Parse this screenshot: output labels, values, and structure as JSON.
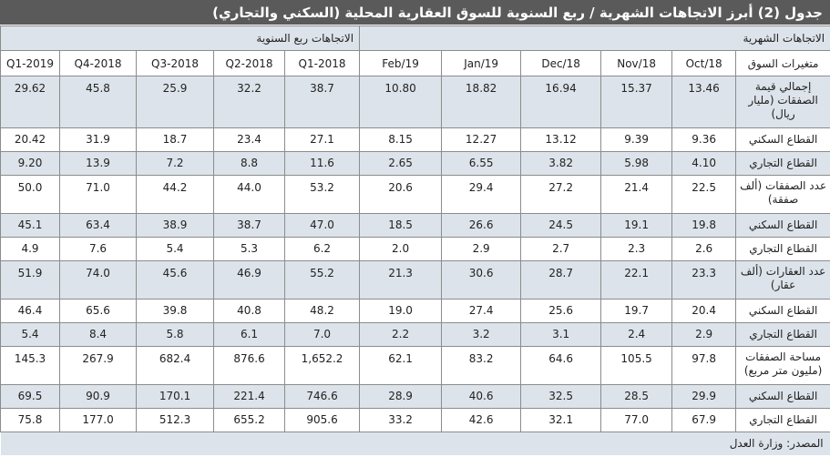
{
  "title": "جدول (2) أبرز الاتجاهات الشهرية / ربع السنوية للسوق العقارية المحلية (السكني والتجاري)",
  "groups": {
    "monthly": "الاتجاهات الشهرية",
    "quarterly": "الاتجاهات ربع السنوية"
  },
  "columns": {
    "label": "متغيرات السوق",
    "c0": "Oct/18",
    "c1": "Nov/18",
    "c2": "Dec/18",
    "c3": "Jan/19",
    "c4": "Feb/19",
    "c5": "2018-Q1",
    "c6": "2018-Q2",
    "c7": "2018-Q3",
    "c8": "2018-Q4",
    "c9": "2019-Q1"
  },
  "rows": [
    {
      "label": "إجمالي قيمة الصفقات (مليار ريال)",
      "v": [
        "13.46",
        "15.37",
        "16.94",
        "18.82",
        "10.80",
        "38.7",
        "32.2",
        "25.9",
        "45.8",
        "29.62"
      ]
    },
    {
      "label": "القطاع السكني",
      "v": [
        "9.36",
        "9.39",
        "13.12",
        "12.27",
        "8.15",
        "27.1",
        "23.4",
        "18.7",
        "31.9",
        "20.42"
      ]
    },
    {
      "label": "القطاع التجاري",
      "v": [
        "4.10",
        "5.98",
        "3.82",
        "6.55",
        "2.65",
        "11.6",
        "8.8",
        "7.2",
        "13.9",
        "9.20"
      ]
    },
    {
      "label": "عدد الصفقات (ألف صفقة)",
      "v": [
        "22.5",
        "21.4",
        "27.2",
        "29.4",
        "20.6",
        "53.2",
        "44.0",
        "44.2",
        "71.0",
        "50.0"
      ]
    },
    {
      "label": "القطاع السكني",
      "v": [
        "19.8",
        "19.1",
        "24.5",
        "26.6",
        "18.5",
        "47.0",
        "38.7",
        "38.9",
        "63.4",
        "45.1"
      ]
    },
    {
      "label": "القطاع التجاري",
      "v": [
        "2.6",
        "2.3",
        "2.7",
        "2.9",
        "2.0",
        "6.2",
        "5.3",
        "5.4",
        "7.6",
        "4.9"
      ]
    },
    {
      "label": "عدد العقارات (ألف عقار)",
      "v": [
        "23.3",
        "22.1",
        "28.7",
        "30.6",
        "21.3",
        "55.2",
        "46.9",
        "45.6",
        "74.0",
        "51.9"
      ]
    },
    {
      "label": "القطاع السكني",
      "v": [
        "20.4",
        "19.7",
        "25.6",
        "27.4",
        "19.0",
        "48.2",
        "40.8",
        "39.8",
        "65.6",
        "46.4"
      ]
    },
    {
      "label": "القطاع التجاري",
      "v": [
        "2.9",
        "2.4",
        "3.1",
        "3.2",
        "2.2",
        "7.0",
        "6.1",
        "5.8",
        "8.4",
        "5.4"
      ]
    },
    {
      "label": "مساحة الصفقات (مليون متر مربع)",
      "v": [
        "97.8",
        "105.5",
        "64.6",
        "83.2",
        "62.1",
        "1,652.2",
        "876.6",
        "682.4",
        "267.9",
        "145.3"
      ]
    },
    {
      "label": "القطاع السكني",
      "v": [
        "29.9",
        "28.5",
        "32.5",
        "40.6",
        "28.9",
        "746.6",
        "221.4",
        "170.1",
        "90.9",
        "69.5"
      ]
    },
    {
      "label": "القطاع التجاري",
      "v": [
        "67.9",
        "77.0",
        "32.1",
        "42.6",
        "33.2",
        "905.6",
        "655.2",
        "512.3",
        "177.0",
        "75.8"
      ]
    }
  ],
  "footer": "المصدر: وزارة العدل",
  "colors": {
    "title_bg": "#5a5a5a",
    "shade": "#dde3ea",
    "border": "#8c8c8c"
  }
}
